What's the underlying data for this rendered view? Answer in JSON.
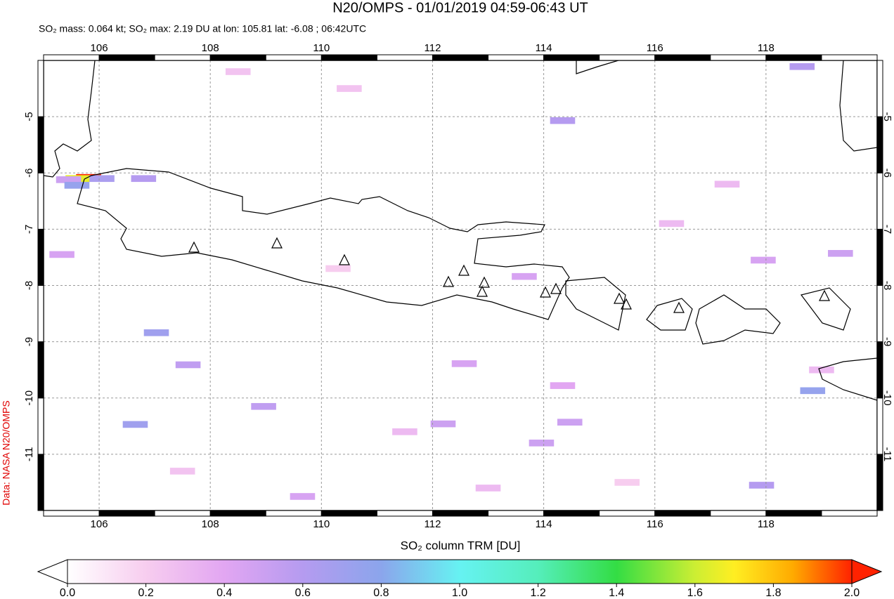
{
  "chart_data": {
    "type": "map",
    "title": "N20/OMPS - 01/01/2019 04:59-06:43 UT",
    "subtitle": "SO₂ mass: 0.064 kt; SO₂ max: 2.19 DU at lon: 105.81 lat: -6.08 ; 06:42UTC",
    "credit": "Data: NASA N20/OMPS",
    "colorbar_label": "SO₂ column TRM [DU]",
    "xlim": [
      105,
      120
    ],
    "ylim": [
      -12,
      -4
    ],
    "xticks": [
      106,
      108,
      110,
      112,
      114,
      116,
      118
    ],
    "yticks": [
      -5,
      -6,
      -7,
      -8,
      -9,
      -10,
      -11
    ],
    "grid": true,
    "clim": [
      0,
      2
    ],
    "cticks": [
      {
        "value": 0,
        "label": "0.0"
      },
      {
        "value": 0.2,
        "label": "0.2"
      },
      {
        "value": 0.4,
        "label": "0.4"
      },
      {
        "value": 0.6,
        "label": "0.6"
      },
      {
        "value": 0.8,
        "label": "0.8"
      },
      {
        "value": 1,
        "label": "1.0"
      },
      {
        "value": 1.2,
        "label": "1.2"
      },
      {
        "value": 1.4,
        "label": "1.4"
      },
      {
        "value": 1.6,
        "label": "1.6"
      },
      {
        "value": 1.8,
        "label": "1.8"
      },
      {
        "value": 2,
        "label": "2.0"
      }
    ],
    "colormap": [
      [
        0,
        "#ffffff"
      ],
      [
        0.2,
        "#f7cdef"
      ],
      [
        0.4,
        "#e2a6f2"
      ],
      [
        0.6,
        "#b59bf0"
      ],
      [
        0.8,
        "#8ba5ec"
      ],
      [
        1,
        "#66f2f2"
      ],
      [
        1.2,
        "#55eebb"
      ],
      [
        1.4,
        "#33dd44"
      ],
      [
        1.6,
        "#ccee33"
      ],
      [
        1.7,
        "#ffee22"
      ],
      [
        1.85,
        "#ffaa00"
      ],
      [
        2,
        "#ff2200"
      ]
    ],
    "pixels": {
      "lon": [
        105.81,
        105.62,
        105.45,
        105.6,
        106.05,
        106.8,
        114.34,
        118.65,
        118.84,
        117.92,
        107.03,
        106.65,
        107.6,
        108.96,
        112.19,
        113.96,
        114.47,
        112.57,
        114.34,
        119.34,
        117.95,
        113.65,
        109.66,
        105.33,
        108.5,
        110.3,
        111.5,
        116.3,
        119.0,
        107.5,
        113.0,
        115.5,
        110.5,
        117.3
      ],
      "lat": [
        -6.08,
        -6.1,
        -6.12,
        -6.22,
        -6.1,
        -6.1,
        -5.07,
        -4.11,
        -9.87,
        -11.55,
        -8.84,
        -10.47,
        -9.41,
        -10.15,
        -10.46,
        -10.8,
        -10.43,
        -9.39,
        -9.78,
        -7.43,
        -7.55,
        -7.84,
        -11.75,
        -7.45,
        -4.2,
        -7.7,
        -10.6,
        -6.9,
        -9.5,
        -11.3,
        -11.6,
        -11.5,
        -4.5,
        -6.2
      ],
      "values": [
        2.19,
        1.65,
        0.5,
        0.75,
        0.65,
        0.6,
        0.6,
        0.6,
        0.75,
        0.6,
        0.7,
        0.7,
        0.55,
        0.55,
        0.5,
        0.5,
        0.5,
        0.45,
        0.4,
        0.5,
        0.45,
        0.45,
        0.45,
        0.45,
        0.25,
        0.2,
        0.3,
        0.3,
        0.3,
        0.25,
        0.3,
        0.2,
        0.25,
        0.3
      ]
    }
  }
}
